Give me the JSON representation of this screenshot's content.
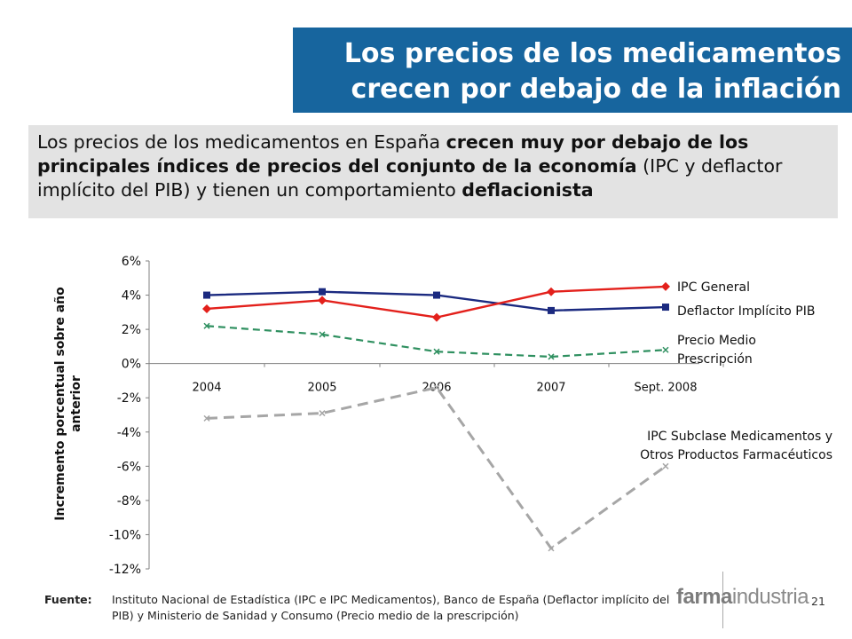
{
  "title": {
    "line1": "Los precios de los medicamentos",
    "line2": "crecen por debajo de la inflación"
  },
  "summary": {
    "part1": "Los precios de los medicamentos en España ",
    "bold1": "crecen muy por debajo de los principales índices de precios del conjunto de la economía",
    "part2": " (IPC y deflactor implícito del PIB) y tienen un comportamiento ",
    "bold2": "deflacionista"
  },
  "chart_data": {
    "type": "line",
    "categories": [
      "2004",
      "2005",
      "2006",
      "2007",
      "Sept. 2008"
    ],
    "ylabel": "Incremento porcentual sobre año anterior",
    "ylim": [
      -12,
      6
    ],
    "yticks": [
      "6%",
      "4%",
      "2%",
      "0%",
      "-2%",
      "-4%",
      "-6%",
      "-8%",
      "-10%",
      "-12%"
    ],
    "series": [
      {
        "name": "IPC General",
        "values": [
          3.2,
          3.7,
          2.7,
          4.2,
          4.5
        ],
        "color": "#e3201b",
        "marker": "diamond",
        "dash": "solid"
      },
      {
        "name": "Deflactor Implícito PIB",
        "values": [
          4.0,
          4.2,
          4.0,
          3.1,
          3.3
        ],
        "color": "#1b2a80",
        "marker": "square",
        "dash": "solid"
      },
      {
        "name": "Precio Medio Prescripción",
        "values": [
          2.2,
          1.7,
          0.7,
          0.4,
          0.8
        ],
        "color": "#2f9060",
        "marker": "x",
        "dash": "dashed"
      },
      {
        "name": "IPC Subclase Medicamentos y Otros Productos Farmacéuticos",
        "values": [
          -3.2,
          -2.9,
          -1.4,
          -10.8,
          -6.0
        ],
        "color": "#a6a6a6",
        "marker": "x",
        "dash": "dashed"
      }
    ]
  },
  "footer": {
    "label": "Fuente:",
    "text": "Instituto Nacional de Estadística (IPC e IPC Medicamentos), Banco de España (Deflactor implícito del PIB) y Ministerio de Sanidad y Consumo (Precio medio de la prescripción)"
  },
  "logo": {
    "part1": "farma",
    "part2": "industria"
  },
  "page_number": "21"
}
